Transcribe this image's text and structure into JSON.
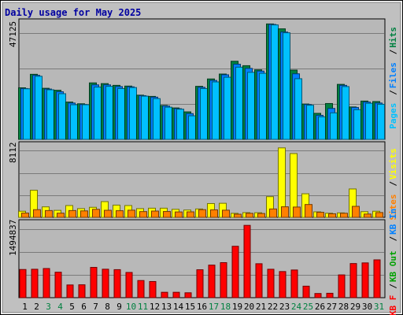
{
  "title": "Daily usage for May 2025",
  "colors": {
    "background": "#ffffff",
    "frame_bg": "#c0c0c0",
    "plot_bg": "#b8b8b8",
    "title": "#0000a0",
    "hits": "#008040",
    "files": "#0080ff",
    "pages": "#00c0ff",
    "visits": "#ffff00",
    "sites": "#ff8000",
    "kbin": "#0080ff",
    "kbout": "#00a000",
    "kbf": "#ff0000",
    "weekend_tick": "#008040",
    "weekday_tick": "#000000"
  },
  "chart_data": [
    {
      "type": "bar",
      "panel": "hits-files-pages",
      "x": [
        "1",
        "2",
        "3",
        "4",
        "5",
        "6",
        "7",
        "8",
        "9",
        "10",
        "11",
        "12",
        "13",
        "14",
        "15",
        "16",
        "17",
        "18",
        "19",
        "20",
        "21",
        "22",
        "23",
        "24",
        "25",
        "26",
        "27",
        "28",
        "29",
        "30",
        "31"
      ],
      "weekend_days": [
        "3",
        "4",
        "10",
        "11",
        "17",
        "18",
        "24",
        "25",
        "31"
      ],
      "ymax_label": "47125",
      "ylim": [
        0,
        47125
      ],
      "series": [
        {
          "name": "Hits",
          "values": [
            21000,
            26500,
            20800,
            20000,
            15200,
            14500,
            23000,
            22700,
            22000,
            21700,
            18000,
            17500,
            13800,
            12800,
            11200,
            21600,
            24600,
            26600,
            31800,
            30000,
            28300,
            47000,
            45000,
            28200,
            14400,
            10600,
            14600,
            22400,
            13200,
            15600,
            15400
          ]
        },
        {
          "name": "Files",
          "values": [
            20700,
            26100,
            20500,
            19400,
            14800,
            14200,
            22200,
            22200,
            21500,
            21400,
            17800,
            17200,
            13600,
            12500,
            10500,
            21200,
            24000,
            26300,
            30600,
            28900,
            27800,
            46800,
            43700,
            26700,
            14200,
            9800,
            12600,
            22000,
            13000,
            15200,
            14800
          ]
        },
        {
          "name": "Pages",
          "values": [
            20600,
            25700,
            20200,
            18600,
            14100,
            14100,
            21300,
            21600,
            20700,
            21100,
            17600,
            16600,
            13100,
            12300,
            9600,
            20700,
            23400,
            25300,
            29400,
            27300,
            26900,
            46600,
            43400,
            24700,
            13900,
            9200,
            10800,
            21500,
            12100,
            14700,
            14300
          ]
        }
      ],
      "legend": [
        "Pages",
        "Files",
        "Hits"
      ]
    },
    {
      "type": "bar",
      "panel": "visits-sites",
      "x": [
        "1",
        "2",
        "3",
        "4",
        "5",
        "6",
        "7",
        "8",
        "9",
        "10",
        "11",
        "12",
        "13",
        "14",
        "15",
        "16",
        "17",
        "18",
        "19",
        "20",
        "21",
        "22",
        "23",
        "24",
        "25",
        "26",
        "27",
        "28",
        "29",
        "30",
        "31"
      ],
      "ymax_label": "8112",
      "ylim": [
        0,
        8112
      ],
      "series": [
        {
          "name": "Visits",
          "values": [
            700,
            3100,
            1200,
            800,
            1350,
            1000,
            1150,
            1800,
            1400,
            1350,
            1000,
            1050,
            1050,
            920,
            840,
            960,
            1580,
            1610,
            460,
            540,
            530,
            2370,
            7950,
            7300,
            2700,
            630,
            470,
            510,
            3250,
            650,
            700
          ]
        },
        {
          "name": "Sites",
          "values": [
            490,
            880,
            780,
            480,
            780,
            740,
            920,
            810,
            760,
            820,
            660,
            720,
            670,
            620,
            630,
            880,
            860,
            820,
            360,
            460,
            440,
            960,
            1210,
            1180,
            1470,
            580,
            410,
            470,
            1260,
            380,
            550
          ]
        }
      ],
      "legend": [
        "Sites",
        "Visits"
      ]
    },
    {
      "type": "bar",
      "panel": "kbf",
      "x": [
        "1",
        "2",
        "3",
        "4",
        "5",
        "6",
        "7",
        "8",
        "9",
        "10",
        "11",
        "12",
        "13",
        "14",
        "15",
        "16",
        "17",
        "18",
        "19",
        "20",
        "21",
        "22",
        "23",
        "24",
        "25",
        "26",
        "27",
        "28",
        "29",
        "30",
        "31"
      ],
      "ymax_label": "1494837",
      "ylim": [
        0,
        1494837
      ],
      "series": [
        {
          "name": "KB F",
          "values": [
            575000,
            580000,
            595000,
            520000,
            260000,
            263000,
            618000,
            581000,
            572000,
            515000,
            350000,
            330000,
            110000,
            110000,
            100000,
            570000,
            665000,
            715000,
            1049000,
            1476000,
            693000,
            580000,
            533000,
            565000,
            235000,
            85000,
            90000,
            465000,
            697000,
            710000,
            772000
          ]
        }
      ],
      "legend": [
        "KB F",
        "KB Out",
        "KB In"
      ]
    }
  ]
}
